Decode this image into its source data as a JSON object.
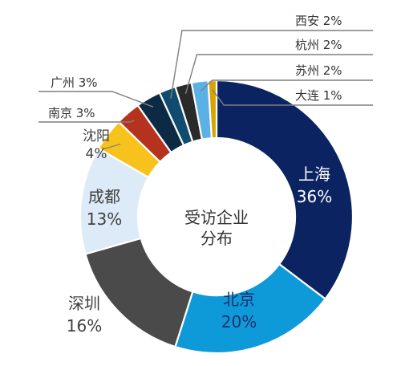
{
  "chart_data": {
    "type": "pie",
    "donut": true,
    "title": "",
    "center_label": [
      "受访企业",
      "分布"
    ],
    "slices": [
      {
        "name": "上海",
        "value": 36,
        "label": "36%",
        "color": "#0b2461"
      },
      {
        "name": "北京",
        "value": 20,
        "label": "20%",
        "color": "#0e9ad8"
      },
      {
        "name": "深圳",
        "value": 16,
        "label": "16%",
        "color": "#4a4a4a"
      },
      {
        "name": "成都",
        "value": 13,
        "label": "13%",
        "color": "#dcebf7"
      },
      {
        "name": "沈阳",
        "value": 4,
        "label": "4%",
        "color": "#f8c21c"
      },
      {
        "name": "南京",
        "value": 3,
        "label": "3%",
        "color": "#b5331e"
      },
      {
        "name": "广州",
        "value": 3,
        "label": "3%",
        "color": "#0d2a44"
      },
      {
        "name": "西安",
        "value": 2,
        "label": "2%",
        "color": "#0f4c6f"
      },
      {
        "name": "杭州",
        "value": 2,
        "label": "2%",
        "color": "#2a2a2a"
      },
      {
        "name": "苏州",
        "value": 2,
        "label": "2%",
        "color": "#5bb0e6"
      },
      {
        "name": "大连",
        "value": 1,
        "label": "1%",
        "color": "#d9a300"
      }
    ]
  }
}
